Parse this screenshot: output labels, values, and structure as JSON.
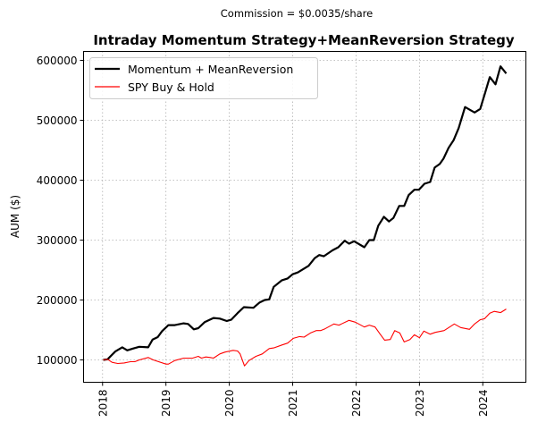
{
  "chart_data": {
    "type": "line",
    "suptitle": "Commission = $0.0035/share",
    "title": "Intraday Momentum Strategy+MeanReversion Strategy",
    "xlabel": "",
    "ylabel": "AUM ($)",
    "xlim": [
      2017.7,
      2024.68
    ],
    "ylim": [
      62700,
      614900
    ],
    "xticks": [
      2018,
      2019,
      2020,
      2021,
      2022,
      2023,
      2024
    ],
    "xtick_labels": [
      "2018",
      "2019",
      "2020",
      "2021",
      "2022",
      "2023",
      "2024"
    ],
    "yticks": [
      100000,
      200000,
      300000,
      400000,
      500000,
      600000
    ],
    "ytick_labels": [
      "100000",
      "200000",
      "300000",
      "400000",
      "500000",
      "600000"
    ],
    "grid": true,
    "legend_position": "upper-left",
    "series": [
      {
        "name": "Momentum + MeanReversion",
        "color": "#000000",
        "x": [
          2018.01,
          2018.08,
          2018.2,
          2018.31,
          2018.39,
          2018.48,
          2018.58,
          2018.72,
          2018.79,
          2018.87,
          2018.94,
          2019.04,
          2019.14,
          2019.28,
          2019.35,
          2019.44,
          2019.51,
          2019.61,
          2019.75,
          2019.85,
          2019.96,
          2020.03,
          2020.13,
          2020.23,
          2020.38,
          2020.48,
          2020.56,
          2020.63,
          2020.7,
          2020.83,
          2020.92,
          2021.0,
          2021.08,
          2021.25,
          2021.35,
          2021.42,
          2021.49,
          2021.63,
          2021.72,
          2021.82,
          2021.89,
          2021.97,
          2022.13,
          2022.21,
          2022.28,
          2022.35,
          2022.44,
          2022.52,
          2022.59,
          2022.68,
          2022.76,
          2022.83,
          2022.92,
          2022.99,
          2023.08,
          2023.17,
          2023.24,
          2023.32,
          2023.38,
          2023.46,
          2023.54,
          2023.62,
          2023.72,
          2023.87,
          2023.96,
          2024.04,
          2024.11,
          2024.2,
          2024.28,
          2024.37
        ],
        "values": [
          100000,
          101000,
          114000,
          121000,
          116000,
          119000,
          122000,
          121000,
          134000,
          138000,
          148000,
          158000,
          158000,
          161000,
          160000,
          151000,
          153000,
          163000,
          170000,
          169000,
          165000,
          167000,
          178000,
          188000,
          187000,
          196000,
          200000,
          201000,
          222000,
          233000,
          236000,
          243000,
          246000,
          257000,
          270000,
          275000,
          273000,
          283000,
          288000,
          299000,
          294000,
          298000,
          288000,
          300000,
          300000,
          324000,
          339000,
          331000,
          337000,
          357000,
          357000,
          375000,
          384000,
          384000,
          394000,
          397000,
          421000,
          427000,
          436000,
          454000,
          467000,
          487000,
          522000,
          513000,
          519000,
          547000,
          572000,
          560000,
          590000,
          578000
        ]
      },
      {
        "name": "SPY Buy & Hold",
        "color": "#ff0000",
        "x": [
          2018.01,
          2018.08,
          2018.15,
          2018.24,
          2018.34,
          2018.44,
          2018.51,
          2018.58,
          2018.72,
          2018.8,
          2019.0,
          2019.04,
          2019.14,
          2019.28,
          2019.42,
          2019.51,
          2019.56,
          2019.63,
          2019.7,
          2019.75,
          2019.85,
          2019.93,
          2020.06,
          2020.13,
          2020.17,
          2020.24,
          2020.31,
          2020.42,
          2020.52,
          2020.63,
          2020.7,
          2020.83,
          2020.92,
          2021.01,
          2021.11,
          2021.18,
          2021.28,
          2021.37,
          2021.44,
          2021.51,
          2021.65,
          2021.73,
          2021.89,
          2021.99,
          2022.13,
          2022.21,
          2022.3,
          2022.38,
          2022.45,
          2022.54,
          2022.61,
          2022.69,
          2022.76,
          2022.85,
          2022.92,
          2023.0,
          2023.07,
          2023.17,
          2023.25,
          2023.39,
          2023.55,
          2023.65,
          2023.79,
          2023.87,
          2023.96,
          2024.03,
          2024.11,
          2024.18,
          2024.28,
          2024.37
        ],
        "values": [
          100000,
          101000,
          96000,
          94000,
          95000,
          97000,
          97000,
          100000,
          104000,
          100000,
          93000,
          93000,
          99000,
          103000,
          103000,
          106000,
          103000,
          105000,
          104000,
          103000,
          110000,
          113000,
          116000,
          115000,
          110000,
          90000,
          99000,
          106000,
          110000,
          119000,
          120000,
          125000,
          128000,
          136000,
          139000,
          138000,
          145000,
          149000,
          149000,
          152000,
          160000,
          158000,
          166000,
          163000,
          155000,
          158000,
          155000,
          143000,
          133000,
          134000,
          149000,
          145000,
          130000,
          134000,
          142000,
          137000,
          148000,
          143000,
          146000,
          149000,
          160000,
          154000,
          151000,
          160000,
          167000,
          169000,
          178000,
          181000,
          179000,
          185000
        ]
      }
    ]
  }
}
